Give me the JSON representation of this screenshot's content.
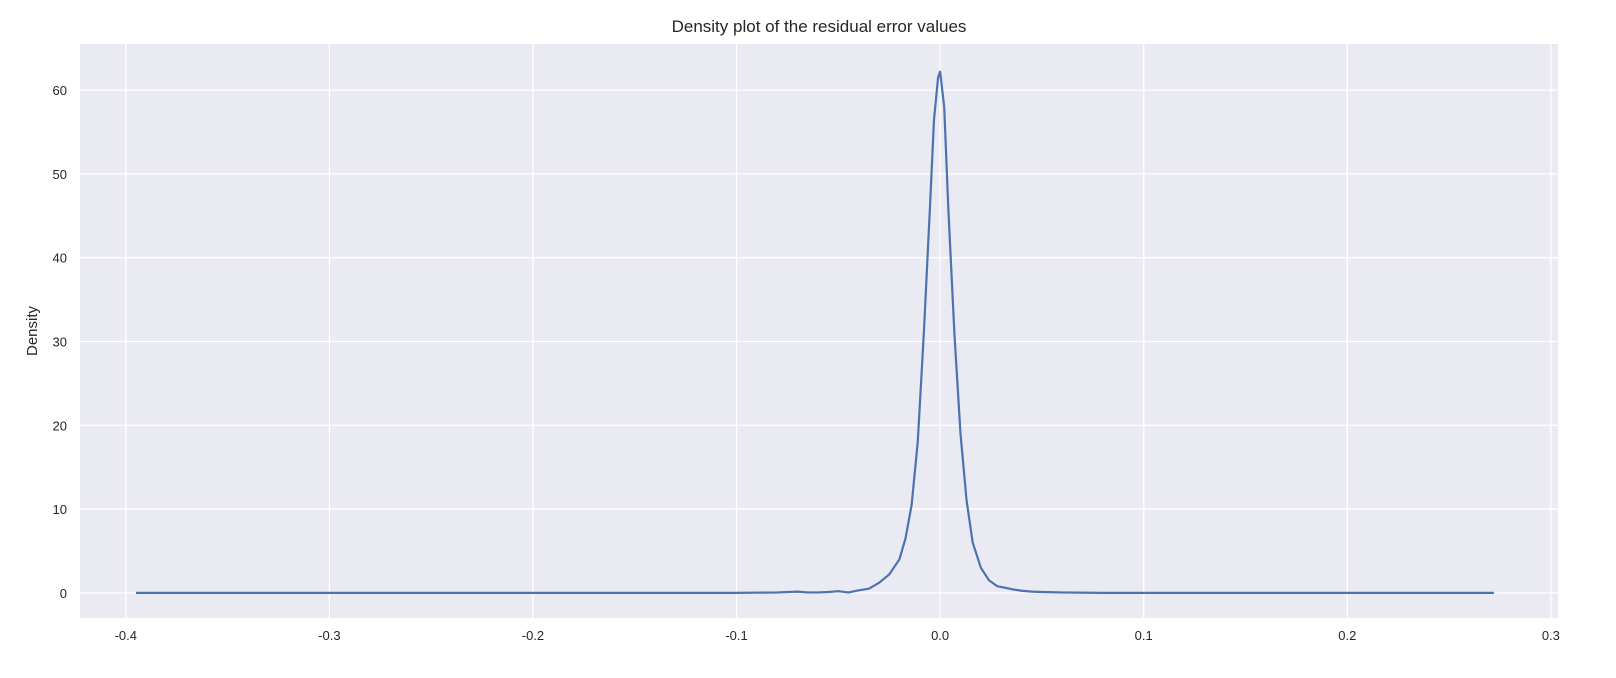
{
  "chart_data": {
    "type": "line",
    "title": "Density plot of the residual error values",
    "xlabel": "",
    "ylabel": "Density",
    "xlim": [
      -0.4225,
      0.3035
    ],
    "ylim": [
      -3.0,
      65.5
    ],
    "x_ticks": [
      -0.4,
      -0.3,
      -0.2,
      -0.1,
      0.0,
      0.1,
      0.2,
      0.3
    ],
    "x_tick_labels": [
      "-0.4",
      "-0.3",
      "-0.2",
      "-0.1",
      "0.0",
      "0.1",
      "0.2",
      "0.3"
    ],
    "y_ticks": [
      0,
      10,
      20,
      30,
      40,
      50,
      60
    ],
    "y_tick_labels": [
      "0",
      "10",
      "20",
      "30",
      "40",
      "50",
      "60"
    ],
    "grid": true,
    "colors": {
      "background": "#eaeaf2",
      "grid": "#ffffff",
      "line": "#4c72b0"
    },
    "series": [
      {
        "x": [
          -0.395,
          -0.3,
          -0.2,
          -0.1,
          -0.08,
          -0.07,
          -0.065,
          -0.06,
          -0.055,
          -0.05,
          -0.045,
          -0.04,
          -0.035,
          -0.03,
          -0.025,
          -0.02,
          -0.017,
          -0.014,
          -0.011,
          -0.008,
          -0.005,
          -0.003,
          -0.001,
          0.0,
          0.002,
          0.004,
          0.007,
          0.01,
          0.013,
          0.016,
          0.02,
          0.024,
          0.028,
          0.032,
          0.036,
          0.04,
          0.045,
          0.05,
          0.06,
          0.08,
          0.1,
          0.15,
          0.2,
          0.25,
          0.272
        ],
        "y": [
          0,
          0,
          0,
          0,
          0.05,
          0.15,
          0.05,
          0.05,
          0.1,
          0.2,
          0.05,
          0.3,
          0.5,
          1.2,
          2.2,
          4.0,
          6.5,
          10.5,
          18.0,
          31.0,
          46.0,
          56.5,
          61.5,
          62.2,
          58.0,
          46.0,
          31.0,
          19.0,
          11.0,
          6.0,
          3.0,
          1.5,
          0.8,
          0.6,
          0.4,
          0.25,
          0.15,
          0.1,
          0.05,
          0,
          0,
          0,
          0,
          0,
          0
        ]
      }
    ]
  }
}
